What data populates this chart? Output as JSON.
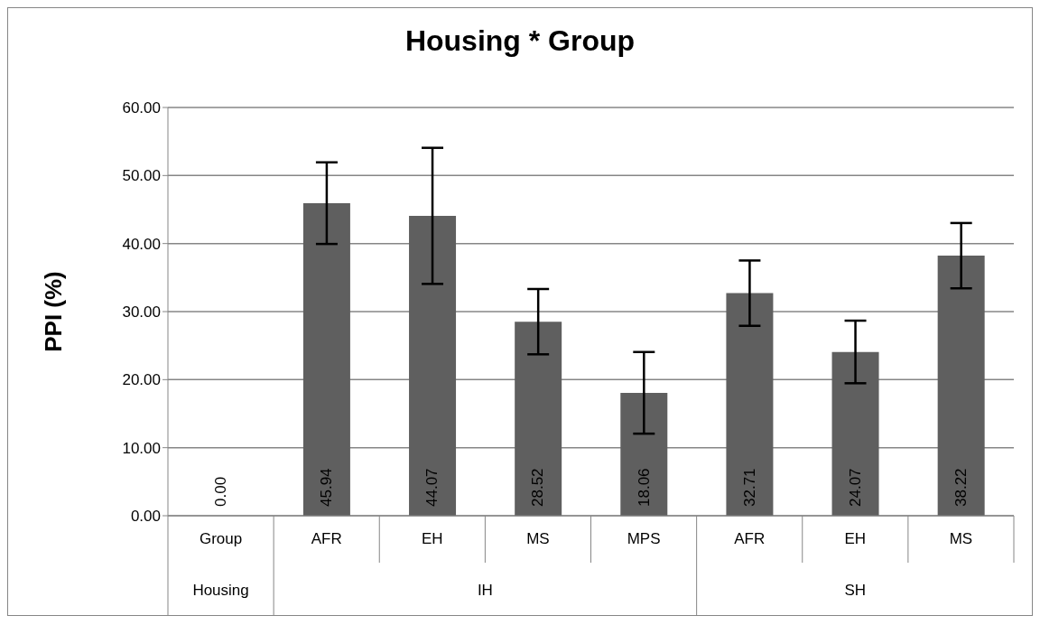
{
  "chart_data": {
    "type": "bar",
    "title": "Housing * Group",
    "ylabel": "PPI  (%)",
    "categories": [
      "Group",
      "AFR",
      "EH",
      "MS",
      "MPS",
      "AFR",
      "EH",
      "MS"
    ],
    "values": [
      0,
      45.94,
      44.07,
      28.52,
      18.06,
      32.71,
      24.07,
      38.22
    ],
    "errors": [
      null,
      6,
      10,
      4.8,
      6,
      4.8,
      4.6,
      4.8
    ],
    "value_labels": [
      "0.00",
      "45.94",
      "44.07",
      "28.52",
      "18.06",
      "32.71",
      "24.07",
      "38.22"
    ],
    "color": "#5f5f5f",
    "ylim": [
      0,
      60
    ],
    "yticks": [
      {
        "value": 0,
        "label": "0.00"
      },
      {
        "value": 10,
        "label": "10.00"
      },
      {
        "value": 20,
        "label": "20.00"
      },
      {
        "value": 30,
        "label": "30.00"
      },
      {
        "value": 40,
        "label": "40.00"
      },
      {
        "value": 50,
        "label": "50.00"
      },
      {
        "value": 60,
        "label": "60.00"
      }
    ],
    "grid": "y",
    "annotations": [
      "Housing",
      "IH",
      "SH"
    ]
  }
}
